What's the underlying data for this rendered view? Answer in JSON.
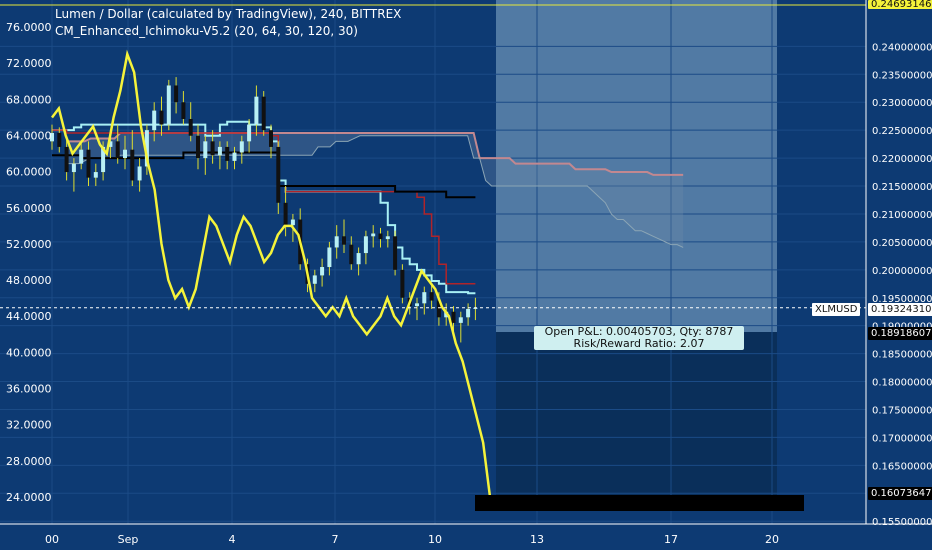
{
  "header": {
    "title": "Lumen / Dollar (calculated by TradingView), 240, BITTREX",
    "indicator": "CM_Enhanced_Ichimoku-V5.2 (20, 64, 30, 120, 30)"
  },
  "position_box": {
    "pnl_line": "Open P&L: 0.00405703, Qty: 8787",
    "rr_line": "Risk/Reward Ratio: 2.07"
  },
  "price_tags": {
    "symbol": "XLMUSD",
    "last": "0.19324310",
    "stop": "0.18918607",
    "target": "0.16073647",
    "top": "0.24693146"
  },
  "colors": {
    "background": "#0d3a73",
    "yellow_line": "#f5f33a",
    "bullish_candle": "#b9f0f5",
    "bearish_candle": "#111111",
    "wick": "#dddd30",
    "tenkan": "#000000",
    "kijun": "#b0242a",
    "lagging": "#a8f0f5",
    "cloud_a": "#c28890",
    "cloud_b": "#8ba5b5",
    "profit_zone": "#5e86ad",
    "loss_zone": "#0a2f5a"
  },
  "chart_data": {
    "type": "line",
    "x_ticks": [
      "00",
      "Sep",
      "4",
      "7",
      "10",
      "13",
      "17",
      "20"
    ],
    "left_axis_ticks": [
      "76.0000",
      "72.0000",
      "68.0000",
      "64.0000",
      "60.0000",
      "56.0000",
      "52.0000",
      "48.0000",
      "44.0000",
      "40.0000",
      "36.0000",
      "32.0000",
      "28.0000",
      "24.0000"
    ],
    "left_ylim": [
      21,
      79
    ],
    "right_axis_ticks": [
      "0.24000000",
      "0.23500000",
      "0.23000000",
      "0.22500000",
      "0.22000000",
      "0.21500000",
      "0.21000000",
      "0.20500000",
      "0.20000000",
      "0.19500000",
      "0.19000000",
      "0.18500000",
      "0.18000000",
      "0.17500000",
      "0.17000000",
      "0.16500000",
      "0.16000000",
      "0.15500000"
    ],
    "right_ylim": [
      0.1545,
      0.2483
    ],
    "last_price": 0.1932,
    "candles": [
      [
        0.223,
        0.226,
        0.2215,
        0.2245
      ],
      [
        0.2245,
        0.2255,
        0.221,
        0.222
      ],
      [
        0.222,
        0.224,
        0.216,
        0.2175
      ],
      [
        0.2175,
        0.22,
        0.214,
        0.219
      ],
      [
        0.219,
        0.223,
        0.218,
        0.2215
      ],
      [
        0.2215,
        0.223,
        0.215,
        0.2165
      ],
      [
        0.2165,
        0.219,
        0.215,
        0.2175
      ],
      [
        0.2175,
        0.223,
        0.216,
        0.222
      ],
      [
        0.222,
        0.225,
        0.22,
        0.223
      ],
      [
        0.223,
        0.226,
        0.219,
        0.22
      ],
      [
        0.22,
        0.224,
        0.218,
        0.2215
      ],
      [
        0.2215,
        0.225,
        0.215,
        0.216
      ],
      [
        0.216,
        0.22,
        0.214,
        0.2185
      ],
      [
        0.2185,
        0.226,
        0.217,
        0.225
      ],
      [
        0.225,
        0.23,
        0.223,
        0.2285
      ],
      [
        0.2285,
        0.231,
        0.224,
        0.226
      ],
      [
        0.226,
        0.234,
        0.225,
        0.233
      ],
      [
        0.233,
        0.2345,
        0.228,
        0.23
      ],
      [
        0.23,
        0.232,
        0.226,
        0.227
      ],
      [
        0.227,
        0.23,
        0.223,
        0.224
      ],
      [
        0.224,
        0.226,
        0.218,
        0.22
      ],
      [
        0.22,
        0.224,
        0.217,
        0.223
      ],
      [
        0.223,
        0.225,
        0.219,
        0.2205
      ],
      [
        0.2205,
        0.223,
        0.218,
        0.222
      ],
      [
        0.222,
        0.223,
        0.218,
        0.2195
      ],
      [
        0.2195,
        0.222,
        0.218,
        0.221
      ],
      [
        0.221,
        0.224,
        0.219,
        0.223
      ],
      [
        0.223,
        0.227,
        0.221,
        0.226
      ],
      [
        0.226,
        0.233,
        0.224,
        0.231
      ],
      [
        0.231,
        0.232,
        0.224,
        0.225
      ],
      [
        0.225,
        0.226,
        0.22,
        0.222
      ],
      [
        0.222,
        0.223,
        0.21,
        0.212
      ],
      [
        0.212,
        0.215,
        0.206,
        0.208
      ],
      [
        0.208,
        0.21,
        0.205,
        0.209
      ],
      [
        0.209,
        0.211,
        0.2,
        0.201
      ],
      [
        0.201,
        0.202,
        0.196,
        0.1975
      ],
      [
        0.1975,
        0.2,
        0.196,
        0.199
      ],
      [
        0.199,
        0.202,
        0.197,
        0.2005
      ],
      [
        0.2005,
        0.205,
        0.199,
        0.204
      ],
      [
        0.204,
        0.208,
        0.202,
        0.206
      ],
      [
        0.206,
        0.209,
        0.203,
        0.2045
      ],
      [
        0.2045,
        0.206,
        0.2,
        0.201
      ],
      [
        0.201,
        0.204,
        0.199,
        0.203
      ],
      [
        0.203,
        0.207,
        0.201,
        0.206
      ],
      [
        0.206,
        0.208,
        0.204,
        0.2065
      ],
      [
        0.2065,
        0.2075,
        0.204,
        0.2055
      ],
      [
        0.2055,
        0.207,
        0.204,
        0.206
      ],
      [
        0.206,
        0.207,
        0.199,
        0.2
      ],
      [
        0.2,
        0.201,
        0.194,
        0.195
      ],
      [
        0.195,
        0.196,
        0.192,
        0.1935
      ],
      [
        0.1935,
        0.195,
        0.191,
        0.194
      ],
      [
        0.194,
        0.197,
        0.192,
        0.196
      ],
      [
        0.196,
        0.1975,
        0.193,
        0.1945
      ],
      [
        0.1945,
        0.196,
        0.19,
        0.1915
      ],
      [
        0.1915,
        0.194,
        0.19,
        0.1925
      ],
      [
        0.1925,
        0.1935,
        0.189,
        0.1905
      ],
      [
        0.1905,
        0.1925,
        0.187,
        0.1915
      ],
      [
        0.1915,
        0.194,
        0.19,
        0.193
      ],
      [
        0.193,
        0.195,
        0.191,
        0.1932
      ]
    ],
    "yellow_oscillator": [
      66,
      67,
      64,
      62,
      63,
      64,
      65,
      63,
      62,
      66,
      69,
      73,
      71,
      65,
      61,
      58,
      52,
      48,
      46,
      47,
      45,
      47,
      51,
      55,
      54,
      52,
      50,
      53,
      55,
      54,
      52,
      50,
      51,
      53,
      54,
      54,
      53,
      50,
      46,
      45,
      44,
      45,
      44,
      46,
      44,
      43,
      42,
      43,
      44,
      46,
      44,
      43,
      45,
      47,
      49,
      48,
      47,
      45,
      44,
      41,
      39,
      36,
      33,
      30,
      24
    ],
    "tenkan": [
      0.2205,
      0.2205,
      0.2205,
      0.2205,
      0.22,
      0.22,
      0.22,
      0.22,
      0.22,
      0.22,
      0.22,
      0.22,
      0.22,
      0.22,
      0.22,
      0.22,
      0.22,
      0.22,
      0.221,
      0.221,
      0.221,
      0.221,
      0.221,
      0.221,
      0.221,
      0.221,
      0.221,
      0.221,
      0.221,
      0.221,
      0.221,
      0.215,
      0.215,
      0.215,
      0.215,
      0.215,
      0.215,
      0.215,
      0.215,
      0.215,
      0.215,
      0.215,
      0.215,
      0.215,
      0.215,
      0.215,
      0.215,
      0.214,
      0.214,
      0.214,
      0.214,
      0.214,
      0.214,
      0.214,
      0.213,
      0.213,
      0.213,
      0.213,
      0.213
    ],
    "kijun": [
      0.225,
      0.225,
      0.2245,
      0.2245,
      0.2245,
      0.2245,
      0.2245,
      0.2245,
      0.2245,
      0.2245,
      0.2245,
      0.2245,
      0.2245,
      0.2245,
      0.2245,
      0.2245,
      0.2245,
      0.2245,
      0.2245,
      0.2245,
      0.2245,
      0.2245,
      0.2245,
      0.2245,
      0.2245,
      0.2245,
      0.2245,
      0.2245,
      0.2245,
      0.2245,
      0.224,
      0.215,
      0.214,
      0.214,
      0.214,
      0.214,
      0.214,
      0.214,
      0.214,
      0.214,
      0.214,
      0.214,
      0.214,
      0.214,
      0.214,
      0.214,
      0.214,
      0.214,
      0.214,
      0.214,
      0.213,
      0.21,
      0.206,
      0.201,
      0.1975,
      0.1975,
      0.1975,
      0.1975,
      0.1975
    ],
    "lagging_line": [
      0.225,
      0.225,
      0.225,
      0.2255,
      0.226,
      0.226,
      0.226,
      0.226,
      0.226,
      0.226,
      0.226,
      0.226,
      0.226,
      0.226,
      0.226,
      0.226,
      0.226,
      0.226,
      0.226,
      0.226,
      0.226,
      0.224,
      0.224,
      0.226,
      0.2265,
      0.2265,
      0.2265,
      0.226,
      0.226,
      0.2255,
      0.223,
      0.216,
      0.214,
      0.214,
      0.214,
      0.214,
      0.214,
      0.214,
      0.214,
      0.214,
      0.214,
      0.214,
      0.214,
      0.214,
      0.214,
      0.212,
      0.208,
      0.204,
      0.202,
      0.201,
      0.2,
      0.199,
      0.198,
      0.1975,
      0.196,
      0.196,
      0.196,
      0.1958,
      0.1958
    ],
    "cloud_upper": [
      0.223,
      0.223,
      0.223,
      0.223,
      0.2235,
      0.2235,
      0.2235,
      0.2235,
      0.2235,
      0.2245,
      0.2245,
      0.2245,
      0.2245,
      0.2245,
      0.2245,
      0.2245,
      0.2245,
      0.2245,
      0.2245,
      0.2245,
      0.2245,
      0.2245,
      0.2245,
      0.2245,
      0.2245,
      0.2245,
      0.2245,
      0.2245,
      0.2245,
      0.2245,
      0.2245,
      0.2245,
      0.2245,
      0.2245,
      0.2245,
      0.2245,
      0.2245,
      0.2245,
      0.2245,
      0.2245,
      0.2245,
      0.2245,
      0.2245,
      0.2245,
      0.2245,
      0.2245,
      0.2245,
      0.2245,
      0.2245,
      0.2245,
      0.2245,
      0.2245,
      0.2245,
      0.2245,
      0.2245,
      0.2245,
      0.2245,
      0.2245,
      0.2245,
      0.2245,
      0.2245,
      0.2245,
      0.2245,
      0.2245,
      0.2245,
      0.2245,
      0.2245,
      0.2245,
      0.2245,
      0.22,
      0.22,
      0.22,
      0.22,
      0.22,
      0.22,
      0.219,
      0.219,
      0.219,
      0.219,
      0.219,
      0.219,
      0.219,
      0.219,
      0.219,
      0.219,
      0.218,
      0.218,
      0.218,
      0.218,
      0.218,
      0.218,
      0.2175,
      0.2175,
      0.2175,
      0.2175,
      0.2175,
      0.2175,
      0.2175,
      0.217,
      0.217,
      0.217,
      0.217,
      0.217,
      0.217
    ],
    "cloud_lower": [
      0.219,
      0.219,
      0.219,
      0.2195,
      0.22,
      0.22,
      0.22,
      0.22,
      0.22,
      0.2205,
      0.2205,
      0.2205,
      0.2205,
      0.2205,
      0.2205,
      0.2205,
      0.2205,
      0.2205,
      0.2205,
      0.2205,
      0.2205,
      0.2205,
      0.2205,
      0.2205,
      0.2205,
      0.2205,
      0.2205,
      0.2205,
      0.2205,
      0.2205,
      0.2205,
      0.2205,
      0.2205,
      0.2205,
      0.2205,
      0.2205,
      0.2205,
      0.2205,
      0.2205,
      0.2205,
      0.2205,
      0.2205,
      0.222,
      0.222,
      0.222,
      0.223,
      0.223,
      0.223,
      0.2235,
      0.224,
      0.224,
      0.224,
      0.224,
      0.224,
      0.224,
      0.224,
      0.224,
      0.224,
      0.224,
      0.224,
      0.224,
      0.224,
      0.224,
      0.224,
      0.224,
      0.224,
      0.224,
      0.224,
      0.22,
      0.22,
      0.216,
      0.215,
      0.215,
      0.215,
      0.215,
      0.215,
      0.215,
      0.215,
      0.215,
      0.215,
      0.215,
      0.215,
      0.215,
      0.215,
      0.215,
      0.215,
      0.215,
      0.215,
      0.214,
      0.213,
      0.212,
      0.21,
      0.209,
      0.209,
      0.208,
      0.207,
      0.207,
      0.2065,
      0.206,
      0.2055,
      0.205,
      0.2045,
      0.2045,
      0.204
    ]
  }
}
